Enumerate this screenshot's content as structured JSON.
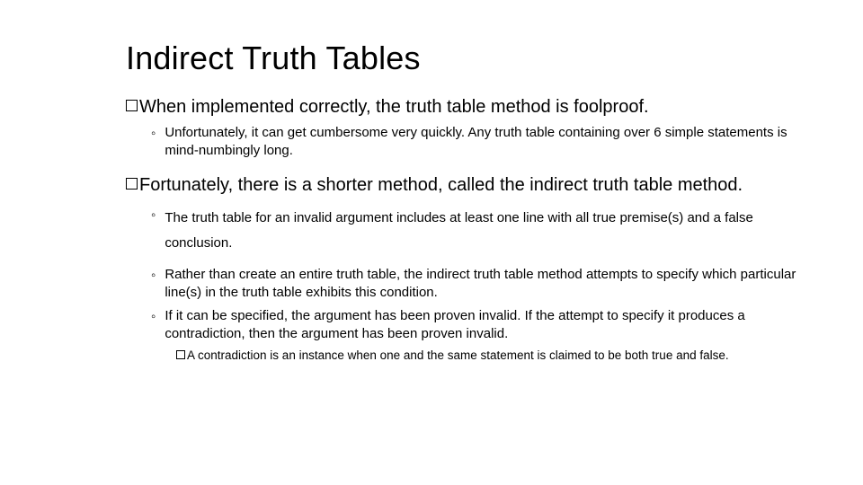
{
  "title": "Indirect Truth Tables",
  "p1": "When implemented correctly, the truth table method is foolproof.",
  "p1_s1": "Unfortunately, it can get cumbersome very quickly. Any truth table containing over 6 simple statements is mind-numbingly long.",
  "p2": "Fortunately, there is a shorter method, called the indirect truth table method.",
  "p2_s1": "The truth table for an invalid argument includes at least one line with all true premise(s) and a false conclusion.",
  "p2_s2": "Rather than create an entire truth table, the indirect truth table method attempts to specify which particular line(s) in the truth table exhibits this condition.",
  "p2_s3": "If it can be specified, the argument has been proven invalid. If the attempt to specify it produces a contradiction, then the argument has been proven invalid.",
  "p2_s3_a": "A contradiction is an instance when one and the same statement is claimed to be both true and false.",
  "style": {
    "background": "#ffffff",
    "text_color": "#000000",
    "title_fontsize": 36,
    "lvl1_fontsize": 20,
    "lvl2_fontsize": 15,
    "lvl3_fontsize": 13.5,
    "square_bullet_border": "#000000",
    "circle_bullet_color": "#000000"
  }
}
